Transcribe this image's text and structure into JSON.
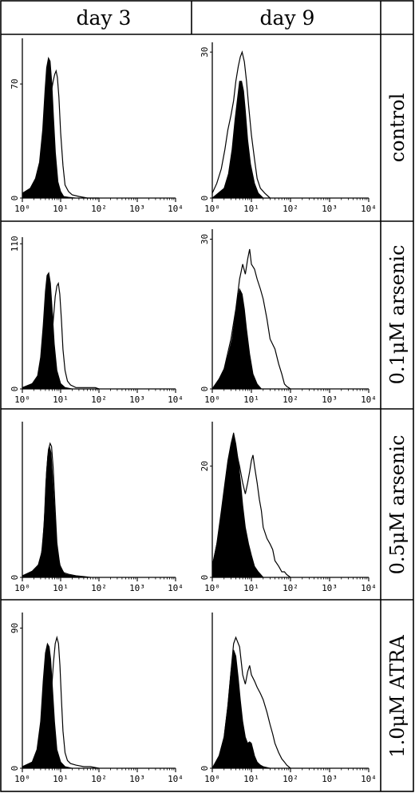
{
  "columns": [
    "day 3",
    "day 9"
  ],
  "rows": [
    "control",
    "0.1μM arsenic",
    "0.5μM arsenic",
    "1.0μM ATRA"
  ],
  "colors": {
    "line": "#000000",
    "fill": "#000000",
    "background": "#ffffff"
  },
  "chart_data": [
    {
      "type": "area",
      "panel": "control / day 3",
      "x_scale": "log",
      "xlim": [
        1,
        10000
      ],
      "x_ticks": [
        "10⁰",
        "10¹",
        "10²",
        "10³",
        "10⁴"
      ],
      "y_ticks": [
        "0",
        "70"
      ],
      "ylim": [
        0,
        98
      ],
      "series": [
        {
          "style": "filled",
          "x": [
            1,
            1.6,
            2.2,
            2.8,
            3.4,
            3.9,
            4.3,
            4.8,
            5.3,
            5.9,
            6.5,
            7.3,
            8.5,
            10,
            12,
            16,
            25,
            40
          ],
          "y": [
            3,
            6,
            12,
            22,
            42,
            66,
            80,
            86,
            84,
            70,
            50,
            28,
            10,
            4,
            1,
            0.5,
            0,
            0
          ]
        },
        {
          "style": "outline",
          "x": [
            1,
            2,
            3,
            4,
            4.6,
            5.2,
            5.8,
            6.4,
            7,
            7.6,
            8.2,
            9,
            10,
            11.5,
            13,
            16,
            20,
            30,
            50,
            100
          ],
          "y": [
            0,
            2,
            8,
            22,
            40,
            56,
            66,
            72,
            76,
            78,
            74,
            62,
            40,
            20,
            8,
            4,
            2,
            1,
            0,
            0
          ]
        }
      ]
    },
    {
      "type": "area",
      "panel": "control / day 9",
      "x_scale": "log",
      "xlim": [
        1,
        10000
      ],
      "x_ticks": [
        "10⁰",
        "10¹",
        "10²",
        "10³",
        "10⁴"
      ],
      "y_ticks": [
        "0",
        "30"
      ],
      "ylim": [
        0,
        32
      ],
      "series": [
        {
          "style": "filled",
          "x": [
            1,
            2,
            2.6,
            3.2,
            3.8,
            4.5,
            5,
            5.6,
            6.3,
            7,
            8,
            9.5,
            12,
            15,
            20,
            30
          ],
          "y": [
            0,
            2,
            5,
            10,
            16,
            21,
            24,
            24,
            22,
            18,
            12,
            7,
            3,
            1,
            0,
            0
          ]
        },
        {
          "style": "outline",
          "x": [
            1,
            1.3,
            1.7,
            2.1,
            2.5,
            3,
            3.5,
            4,
            4.6,
            5.2,
            5.8,
            6.6,
            7.5,
            8.5,
            10,
            12,
            14,
            17,
            22,
            30
          ],
          "y": [
            1,
            3,
            6,
            10,
            14,
            17,
            20,
            24,
            27,
            29,
            30,
            28,
            24,
            19,
            13,
            8,
            4,
            2,
            1,
            0
          ]
        }
      ]
    },
    {
      "type": "area",
      "panel": "0.1μM arsenic / day 3",
      "x_scale": "log",
      "xlim": [
        1,
        10000
      ],
      "x_ticks": [
        "10⁰",
        "10¹",
        "10²",
        "10³",
        "10⁴"
      ],
      "y_ticks": [
        "0",
        "110"
      ],
      "ylim": [
        0,
        115
      ],
      "series": [
        {
          "style": "filled",
          "x": [
            1,
            1.8,
            2.5,
            3,
            3.5,
            4,
            4.4,
            4.9,
            5.4,
            6,
            6.8,
            8,
            10,
            13,
            20
          ],
          "y": [
            1,
            4,
            10,
            24,
            48,
            74,
            86,
            88,
            80,
            60,
            34,
            14,
            4,
            1,
            0
          ]
        },
        {
          "style": "outline",
          "x": [
            1,
            3,
            4,
            5,
            5.8,
            6.5,
            7.2,
            8,
            8.7,
            9.5,
            10.5,
            11.5,
            13,
            15,
            18,
            25,
            40,
            80,
            100
          ],
          "y": [
            0,
            2,
            6,
            16,
            34,
            54,
            70,
            78,
            80,
            72,
            52,
            30,
            14,
            6,
            3,
            1,
            1,
            1,
            0
          ]
        }
      ]
    },
    {
      "type": "area",
      "panel": "0.1μM arsenic / day 9",
      "x_scale": "log",
      "xlim": [
        1,
        10000
      ],
      "x_ticks": [
        "10⁰",
        "10¹",
        "10²",
        "10³",
        "10⁴"
      ],
      "y_ticks": [
        "0",
        "30"
      ],
      "ylim": [
        0,
        32
      ],
      "series": [
        {
          "style": "filled",
          "x": [
            1,
            1.5,
            2,
            2.6,
            3.2,
            3.8,
            4.4,
            5,
            5.8,
            6.6,
            7.5,
            9,
            11,
            14,
            18,
            25
          ],
          "y": [
            0,
            2,
            4,
            7,
            10,
            14,
            18,
            20,
            19,
            16,
            12,
            7,
            3,
            1,
            0,
            0
          ]
        },
        {
          "style": "outline",
          "x": [
            1,
            1.5,
            2,
            3,
            4,
            5,
            6,
            7,
            8,
            9,
            10,
            12,
            14,
            17,
            20,
            25,
            30,
            40,
            50,
            60,
            70,
            80,
            100
          ],
          "y": [
            0,
            2,
            4,
            10,
            16,
            22,
            25,
            23,
            26,
            28,
            25,
            24,
            22,
            20,
            18,
            14,
            10,
            8,
            5,
            3,
            1,
            0.5,
            0
          ]
        }
      ]
    },
    {
      "type": "area",
      "panel": "0.5μM arsenic / day 3",
      "x_scale": "log",
      "xlim": [
        1,
        10000
      ],
      "x_ticks": [
        "10⁰",
        "10¹",
        "10²",
        "10³",
        "10⁴"
      ],
      "y_ticks": [
        "0"
      ],
      "ylim": [
        0,
        100
      ],
      "series": [
        {
          "style": "filled",
          "x": [
            1,
            1.8,
            2.6,
            3.2,
            3.7,
            4.1,
            4.6,
            5.1,
            5.6,
            6.2,
            7,
            8,
            10,
            13,
            20,
            40
          ],
          "y": [
            1,
            4,
            8,
            16,
            34,
            60,
            78,
            84,
            80,
            64,
            40,
            18,
            6,
            2,
            1,
            0
          ]
        },
        {
          "style": "outline",
          "x": [
            1,
            2,
            2.8,
            3.4,
            3.9,
            4.3,
            4.8,
            5.3,
            5.8,
            6.4,
            7.1,
            8,
            9.5,
            12,
            16,
            25,
            40,
            60
          ],
          "y": [
            1,
            3,
            8,
            20,
            44,
            68,
            82,
            86,
            84,
            70,
            46,
            22,
            8,
            3,
            2,
            1,
            0.5,
            0
          ]
        }
      ]
    },
    {
      "type": "area",
      "panel": "0.5μM arsenic / day 9",
      "x_scale": "log",
      "xlim": [
        1,
        10000
      ],
      "x_ticks": [
        "10⁰",
        "10¹",
        "10²",
        "10³",
        "10⁴"
      ],
      "y_ticks": [
        "0",
        "20"
      ],
      "ylim": [
        0,
        28
      ],
      "series": [
        {
          "style": "filled",
          "x": [
            1,
            1.3,
            1.7,
            2.1,
            2.5,
            3,
            3.5,
            4,
            4.6,
            5.3,
            6,
            7,
            8.5,
            10,
            12,
            15,
            20,
            30
          ],
          "y": [
            2,
            6,
            12,
            17,
            21,
            24,
            26,
            24,
            21,
            17,
            13,
            9,
            6,
            4,
            2,
            1,
            0,
            0
          ]
        },
        {
          "style": "outline",
          "x": [
            1,
            1.5,
            2,
            2.5,
            3,
            3.5,
            4,
            5,
            6,
            7,
            8,
            9,
            10,
            11,
            12,
            14,
            16,
            18,
            20,
            25,
            30,
            35,
            40,
            50,
            60,
            70,
            80,
            100
          ],
          "y": [
            2,
            8,
            14,
            18,
            22,
            24,
            23,
            20,
            17,
            15,
            17,
            19,
            21,
            22,
            20,
            17,
            14,
            12,
            9,
            7,
            6,
            5,
            3,
            2,
            1,
            1,
            0.5,
            0
          ]
        }
      ]
    },
    {
      "type": "area",
      "panel": "1.0μM ATRA / day 3",
      "x_scale": "log",
      "xlim": [
        1,
        10000
      ],
      "x_ticks": [
        "10⁰",
        "10¹",
        "10²",
        "10³",
        "10⁴"
      ],
      "y_ticks": [
        "0",
        "90"
      ],
      "ylim": [
        0,
        100
      ],
      "series": [
        {
          "style": "filled",
          "x": [
            1,
            1.8,
            2.4,
            3,
            3.5,
            4,
            4.5,
            5,
            5.5,
            6.1,
            6.9,
            8,
            10,
            13,
            20
          ],
          "y": [
            1,
            4,
            12,
            30,
            56,
            74,
            80,
            78,
            70,
            52,
            30,
            12,
            4,
            1,
            0
          ]
        },
        {
          "style": "outline",
          "x": [
            1,
            2,
            3,
            4,
            5,
            5.8,
            6.5,
            7.2,
            8,
            8.8,
            9.6,
            10.5,
            11.5,
            13,
            15,
            18,
            25,
            40,
            60,
            100
          ],
          "y": [
            0,
            2,
            6,
            14,
            30,
            50,
            68,
            80,
            84,
            80,
            66,
            44,
            24,
            10,
            5,
            3,
            2,
            1,
            1,
            0
          ]
        }
      ]
    },
    {
      "type": "area",
      "panel": "1.0μM ATRA / day 9",
      "x_scale": "log",
      "xlim": [
        1,
        10000
      ],
      "x_ticks": [
        "10⁰",
        "10¹",
        "10²",
        "10³",
        "10⁴"
      ],
      "y_ticks": [
        "0"
      ],
      "ylim": [
        0,
        100
      ],
      "series": [
        {
          "style": "filled",
          "x": [
            1,
            1.5,
            2,
            2.5,
            3,
            3.5,
            4,
            4.6,
            5.2,
            6,
            7,
            8,
            9,
            10,
            11,
            12,
            14,
            17,
            20,
            30
          ],
          "y": [
            0,
            8,
            20,
            40,
            62,
            76,
            72,
            58,
            44,
            30,
            20,
            16,
            17,
            16,
            12,
            8,
            4,
            2,
            1,
            0
          ]
        },
        {
          "style": "outline",
          "x": [
            1,
            1.5,
            2,
            2.5,
            3,
            3.5,
            4,
            5,
            6,
            7,
            8,
            9,
            10,
            12,
            14,
            17,
            20,
            25,
            30,
            35,
            40,
            50,
            60,
            70,
            80,
            100
          ],
          "y": [
            0,
            8,
            20,
            40,
            62,
            80,
            84,
            78,
            60,
            54,
            62,
            66,
            60,
            56,
            52,
            48,
            44,
            36,
            28,
            22,
            16,
            10,
            6,
            4,
            2,
            0
          ]
        }
      ]
    }
  ]
}
